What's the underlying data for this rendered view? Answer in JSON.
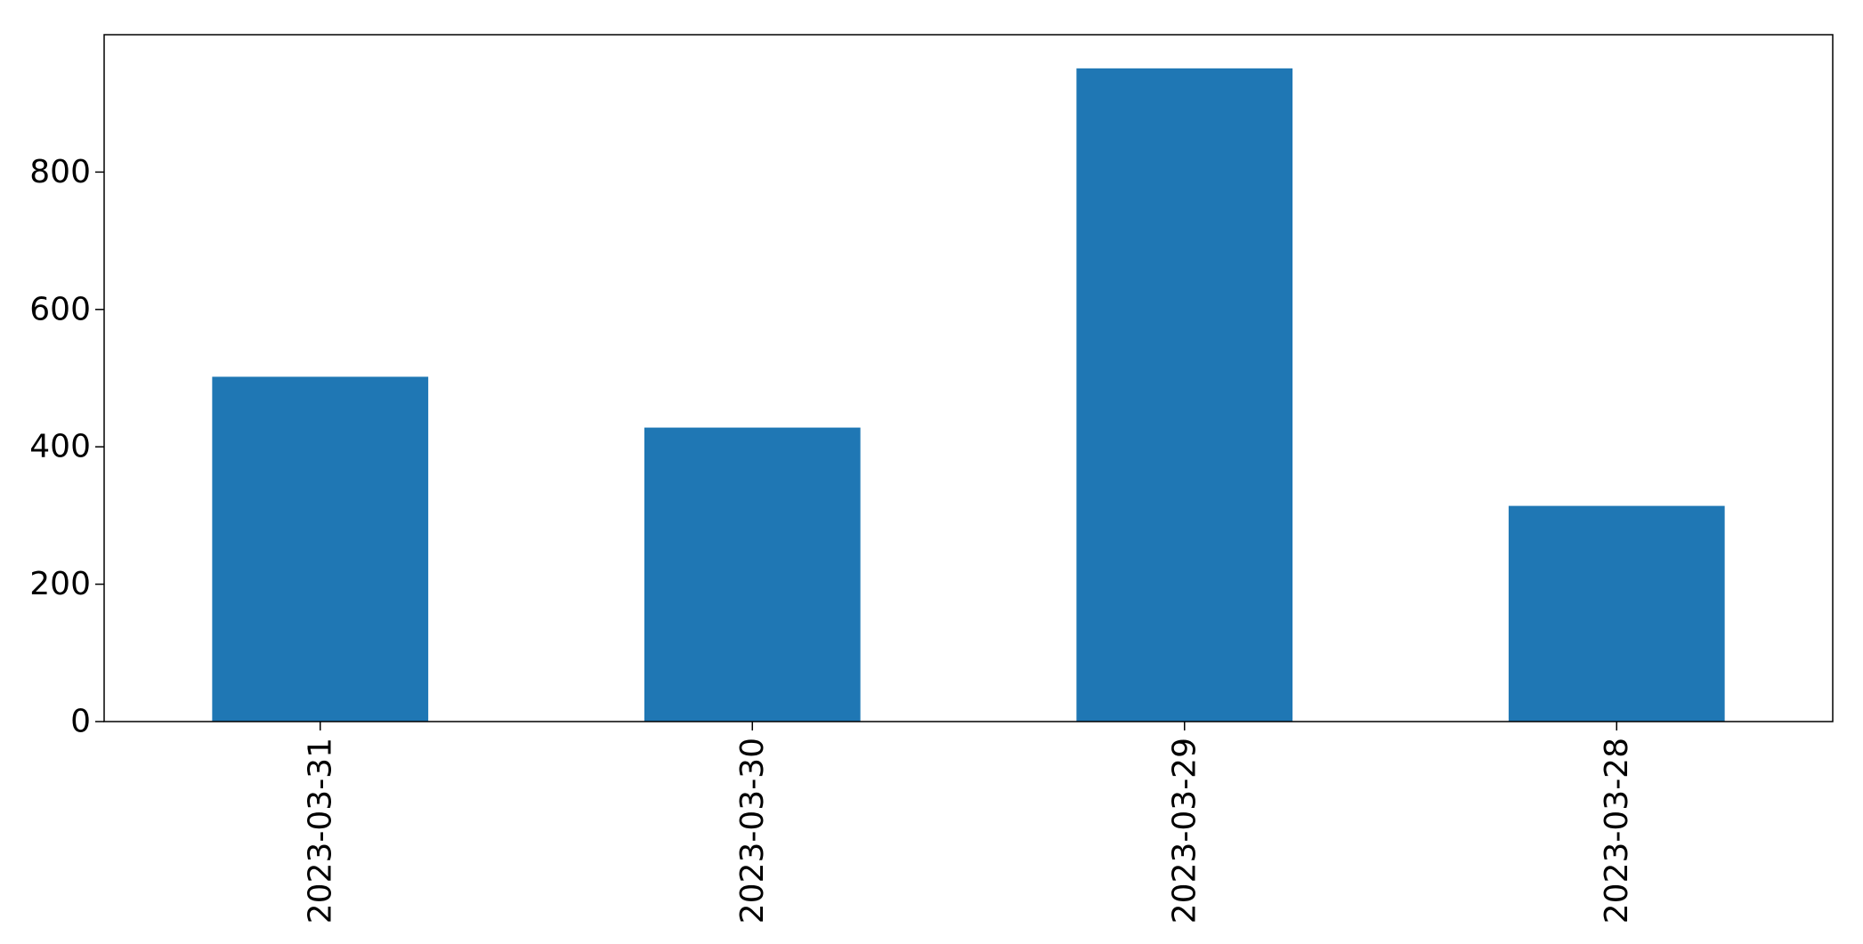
{
  "chart_data": {
    "type": "bar",
    "categories": [
      "2023-03-31",
      "2023-03-30",
      "2023-03-29",
      "2023-03-28"
    ],
    "values": [
      502,
      428,
      951,
      314
    ],
    "title": "",
    "xlabel": "",
    "ylabel": "",
    "ylim": [
      0,
      1000
    ],
    "yticks": [
      0,
      200,
      400,
      600,
      800
    ],
    "bar_color": "#1f77b4",
    "grid": false,
    "legend": "none",
    "x_tick_rotation": "vertical"
  }
}
